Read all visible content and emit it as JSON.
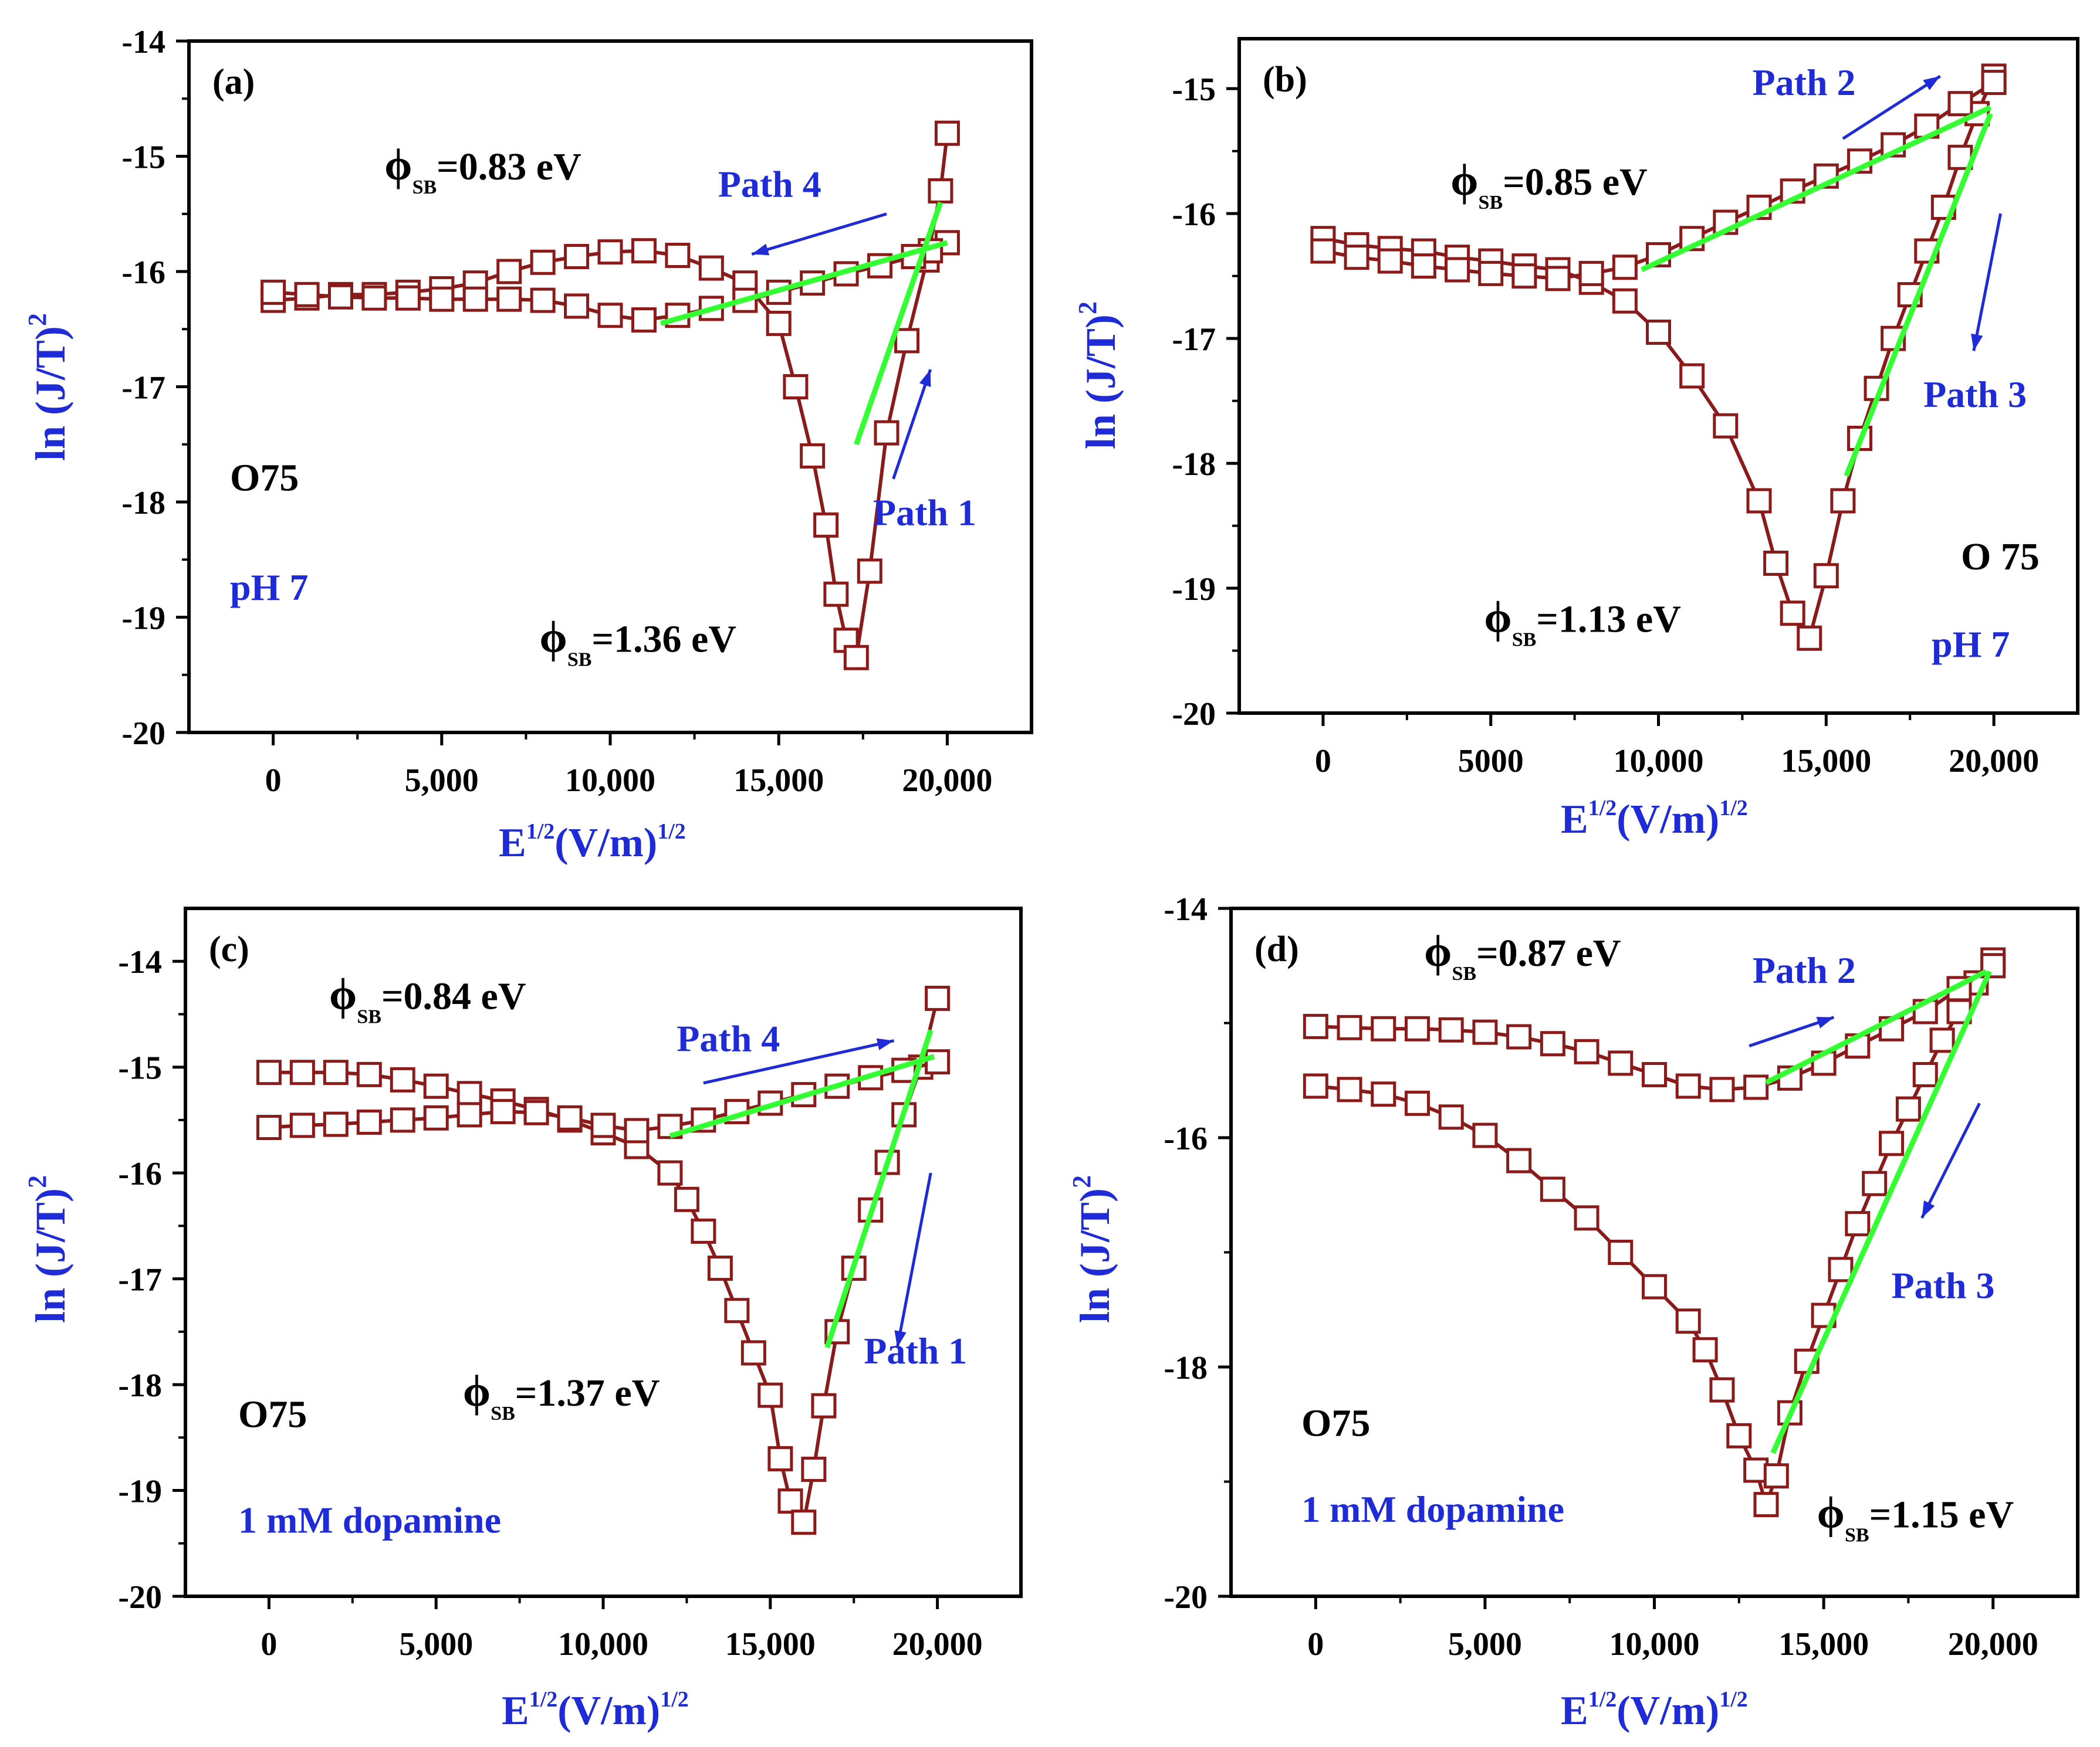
{
  "figure": {
    "x_axis_label": "E",
    "x_axis_sup1": "1/2",
    "x_axis_label_mid": "(V/m)",
    "x_axis_sup2": "1/2",
    "y_axis_label": "ln (J/T)",
    "y_axis_sup": "2",
    "phi_symbol": "ϕ",
    "phi_subscript": "SB"
  },
  "colors": {
    "data_curve": "#8b1a1a",
    "fit_line": "#33ff33",
    "annotation_blue": "#1f2bd6",
    "axis": "#000000"
  },
  "chart_data": [
    {
      "panel_label": "(a)",
      "type": "line",
      "xlim": [
        -2500,
        22500
      ],
      "ylim": [
        -20,
        -14
      ],
      "x_ticks": [
        0,
        5000,
        10000,
        15000,
        20000
      ],
      "x_tick_labels": [
        "0",
        "5,000",
        "10,000",
        "15,000",
        "20,000"
      ],
      "y_ticks": [
        -20,
        -19,
        -18,
        -17,
        -16,
        -15,
        -14
      ],
      "y_tick_labels": [
        "-20",
        "-19",
        "-18",
        "-17",
        "-16",
        "-15",
        "-14"
      ],
      "sample": "O75",
      "condition": "pH  7",
      "barriers": [
        {
          "value": "=0.83 eV",
          "x": 3300,
          "y": -15.2
        },
        {
          "value": "=1.36 eV",
          "x": 7900,
          "y": -19.3
        }
      ],
      "paths": [
        {
          "label": "Path 4",
          "x": 13200,
          "y": -15.35,
          "arrow": [
            [
              18200,
              -15.5
            ],
            [
              14200,
              -15.85
            ]
          ]
        },
        {
          "label": "Path 1",
          "x": 17800,
          "y": -18.2,
          "arrow": [
            [
              18400,
              -17.8
            ],
            [
              19500,
              -16.85
            ]
          ]
        }
      ],
      "fit_lines": [
        [
          [
            11500,
            -16.45
          ],
          [
            20000,
            -15.75
          ]
        ],
        [
          [
            17300,
            -17.5
          ],
          [
            19800,
            -15.4
          ]
        ]
      ],
      "series": [
        {
          "name": "forward",
          "x": [
            0,
            1000,
            2000,
            3000,
            4000,
            5000,
            6000,
            7000,
            8000,
            9000,
            10000,
            11000,
            12000,
            13000,
            14000,
            15000,
            15500,
            16000,
            16400,
            16700,
            17000,
            17300,
            17700,
            18200,
            18800,
            19400,
            19800,
            20000
          ],
          "y": [
            -16.25,
            -16.23,
            -16.2,
            -16.2,
            -16.18,
            -16.15,
            -16.1,
            -16.0,
            -15.92,
            -15.87,
            -15.83,
            -15.82,
            -15.86,
            -15.97,
            -16.1,
            -16.45,
            -17.0,
            -17.6,
            -18.2,
            -18.8,
            -19.2,
            -19.35,
            -18.6,
            -17.4,
            -16.6,
            -15.9,
            -15.3,
            -14.8
          ]
        },
        {
          "name": "reverse",
          "x": [
            20000,
            19500,
            19000,
            18000,
            17000,
            16000,
            15000,
            14000,
            13000,
            12000,
            11000,
            10000,
            9000,
            8000,
            7000,
            6000,
            5000,
            4000,
            3000,
            2000,
            1000,
            0
          ],
          "y": [
            -15.75,
            -15.82,
            -15.87,
            -15.95,
            -16.02,
            -16.1,
            -16.18,
            -16.25,
            -16.32,
            -16.38,
            -16.42,
            -16.38,
            -16.3,
            -16.25,
            -16.24,
            -16.24,
            -16.24,
            -16.23,
            -16.23,
            -16.22,
            -16.2,
            -16.18
          ]
        }
      ]
    },
    {
      "panel_label": "(b)",
      "type": "line",
      "xlim": [
        -2500,
        22500
      ],
      "ylim": [
        -20,
        -14.6
      ],
      "x_ticks": [
        0,
        5000,
        10000,
        15000,
        20000
      ],
      "x_tick_labels": [
        "0",
        "5000",
        "10,000",
        "15,000",
        "20,000"
      ],
      "y_ticks": [
        -20,
        -19,
        -18,
        -17,
        -16,
        -15
      ],
      "y_tick_labels": [
        "-20",
        "-19",
        "-18",
        "-17",
        "-16",
        "-15"
      ],
      "sample": "O 75",
      "condition": "pH 7",
      "barriers": [
        {
          "value": "=0.85 eV",
          "x": 3800,
          "y": -15.85
        },
        {
          "value": "=1.13 eV",
          "x": 4800,
          "y": -19.35
        }
      ],
      "paths": [
        {
          "label": "Path 2",
          "x": 12800,
          "y": -15.05,
          "arrow": [
            [
              15500,
              -15.4
            ],
            [
              18400,
              -14.9
            ]
          ]
        },
        {
          "label": "Path 3",
          "x": 17900,
          "y": -17.55,
          "arrow": [
            [
              20200,
              -16.0
            ],
            [
              19400,
              -17.1
            ]
          ]
        }
      ],
      "fit_lines": [
        [
          [
            9500,
            -16.45
          ],
          [
            19900,
            -15.15
          ]
        ],
        [
          [
            15600,
            -18.1
          ],
          [
            19900,
            -15.2
          ]
        ]
      ],
      "series": [
        {
          "name": "forward",
          "x": [
            0,
            1000,
            2000,
            3000,
            4000,
            5000,
            6000,
            7000,
            8000,
            9000,
            10000,
            11000,
            12000,
            13000,
            13500,
            14000,
            14500,
            15000,
            15500,
            16000,
            16500,
            17000,
            17500,
            18000,
            18500,
            19000,
            19500,
            20000
          ],
          "y": [
            -16.2,
            -16.25,
            -16.28,
            -16.3,
            -16.35,
            -16.38,
            -16.42,
            -16.45,
            -16.55,
            -16.7,
            -16.95,
            -17.3,
            -17.7,
            -18.3,
            -18.8,
            -19.2,
            -19.4,
            -18.9,
            -18.3,
            -17.8,
            -17.4,
            -17.0,
            -16.65,
            -16.3,
            -15.95,
            -15.55,
            -15.2,
            -14.9
          ]
        },
        {
          "name": "reverse",
          "x": [
            20000,
            19000,
            18000,
            17000,
            16000,
            15000,
            14000,
            13000,
            12000,
            11000,
            10000,
            9000,
            8000,
            7000,
            6000,
            5000,
            4000,
            3000,
            2000,
            1000,
            0
          ],
          "y": [
            -14.95,
            -15.12,
            -15.3,
            -15.45,
            -15.58,
            -15.7,
            -15.82,
            -15.95,
            -16.07,
            -16.2,
            -16.33,
            -16.43,
            -16.48,
            -16.52,
            -16.5,
            -16.48,
            -16.45,
            -16.42,
            -16.38,
            -16.35,
            -16.3
          ]
        }
      ]
    },
    {
      "panel_label": "(c)",
      "type": "line",
      "xlim": [
        -2500,
        22500
      ],
      "ylim": [
        -20,
        -13.5
      ],
      "x_ticks": [
        0,
        5000,
        10000,
        15000,
        20000
      ],
      "x_tick_labels": [
        "0",
        "5,000",
        "10,000",
        "15,000",
        "20,000"
      ],
      "y_ticks": [
        -20,
        -19,
        -18,
        -17,
        -16,
        -15,
        -14
      ],
      "y_tick_labels": [
        "-20",
        "-19",
        "-18",
        "-17",
        "-16",
        "-15",
        "-14"
      ],
      "sample": "O75",
      "condition": "1 mM dopamine",
      "barriers": [
        {
          "value": "=0.84 eV",
          "x": 1800,
          "y": -14.45
        },
        {
          "value": "=1.37 eV",
          "x": 5800,
          "y": -18.2
        }
      ],
      "paths": [
        {
          "label": "Path 4",
          "x": 12200,
          "y": -14.85,
          "arrow": [
            [
              13000,
              -15.15
            ],
            [
              18700,
              -14.75
            ]
          ]
        },
        {
          "label": "Path 1",
          "x": 17800,
          "y": -17.8,
          "arrow": [
            [
              19800,
              -16.0
            ],
            [
              18800,
              -17.65
            ]
          ]
        }
      ],
      "fit_lines": [
        [
          [
            12000,
            -15.65
          ],
          [
            19900,
            -14.9
          ]
        ],
        [
          [
            16700,
            -17.65
          ],
          [
            19800,
            -14.65
          ]
        ]
      ],
      "series": [
        {
          "name": "forward",
          "x": [
            0,
            1000,
            2000,
            3000,
            4000,
            5000,
            6000,
            7000,
            8000,
            9000,
            10000,
            11000,
            12000,
            12500,
            13000,
            13500,
            14000,
            14500,
            15000,
            15300,
            15600,
            16000,
            16300,
            16600,
            17000,
            17500,
            18000,
            18500,
            19000,
            19500,
            20000
          ],
          "y": [
            -15.05,
            -15.05,
            -15.05,
            -15.07,
            -15.12,
            -15.18,
            -15.25,
            -15.32,
            -15.4,
            -15.5,
            -15.62,
            -15.75,
            -16.0,
            -16.25,
            -16.55,
            -16.9,
            -17.3,
            -17.7,
            -18.1,
            -18.7,
            -19.1,
            -19.3,
            -18.8,
            -18.2,
            -17.5,
            -16.9,
            -16.35,
            -15.9,
            -15.45,
            -15.0,
            -14.35
          ]
        },
        {
          "name": "reverse",
          "x": [
            20000,
            19000,
            18000,
            17000,
            16000,
            15000,
            14000,
            13000,
            12000,
            11000,
            10000,
            9000,
            8000,
            7000,
            6000,
            5000,
            4000,
            3000,
            2000,
            1000,
            0
          ],
          "y": [
            -14.95,
            -15.03,
            -15.1,
            -15.18,
            -15.26,
            -15.34,
            -15.42,
            -15.5,
            -15.56,
            -15.6,
            -15.55,
            -15.48,
            -15.43,
            -15.42,
            -15.45,
            -15.48,
            -15.5,
            -15.52,
            -15.54,
            -15.55,
            -15.57
          ]
        }
      ]
    },
    {
      "panel_label": "(d)",
      "type": "line",
      "xlim": [
        -2500,
        22500
      ],
      "ylim": [
        -20,
        -14
      ],
      "x_ticks": [
        0,
        5000,
        10000,
        15000,
        20000
      ],
      "x_tick_labels": [
        "0",
        "5,000",
        "10,000",
        "15,000",
        "20,000"
      ],
      "y_ticks": [
        -20,
        -18,
        -16,
        -14
      ],
      "y_tick_labels": [
        "-20",
        "-18",
        "-16",
        "-14"
      ],
      "sample": "O75",
      "condition": "1 mM dopamine",
      "barriers": [
        {
          "value": "=0.87 eV",
          "x": 3200,
          "y": -14.5
        },
        {
          "value": "=1.15 eV",
          "x": 14800,
          "y": -19.4
        }
      ],
      "paths": [
        {
          "label": "Path 2",
          "x": 12900,
          "y": -14.65,
          "arrow": [
            [
              12800,
              -15.2
            ],
            [
              15300,
              -14.95
            ]
          ]
        },
        {
          "label": "Path 3",
          "x": 17000,
          "y": -17.4,
          "arrow": [
            [
              19600,
              -15.7
            ],
            [
              17900,
              -16.7
            ]
          ]
        }
      ],
      "fit_lines": [
        [
          [
            13300,
            -15.52
          ],
          [
            19800,
            -14.55
          ]
        ],
        [
          [
            13500,
            -18.75
          ],
          [
            19900,
            -14.55
          ]
        ]
      ],
      "series": [
        {
          "name": "forward",
          "x": [
            0,
            1000,
            2000,
            3000,
            4000,
            5000,
            6000,
            7000,
            8000,
            9000,
            10000,
            11000,
            11500,
            12000,
            12500,
            13000,
            13300,
            13600,
            14000,
            14500,
            15000,
            15500,
            16000,
            16500,
            17000,
            17500,
            18000,
            18500,
            19000,
            19500,
            20000
          ],
          "y": [
            -15.55,
            -15.58,
            -15.62,
            -15.7,
            -15.82,
            -15.98,
            -16.2,
            -16.45,
            -16.7,
            -17.0,
            -17.3,
            -17.6,
            -17.85,
            -18.2,
            -18.6,
            -18.9,
            -19.2,
            -18.95,
            -18.4,
            -17.95,
            -17.55,
            -17.15,
            -16.75,
            -16.4,
            -16.05,
            -15.75,
            -15.45,
            -15.15,
            -14.9,
            -14.65,
            -14.45
          ]
        },
        {
          "name": "reverse",
          "x": [
            20000,
            19000,
            18000,
            17000,
            16000,
            15000,
            14000,
            13000,
            12000,
            11000,
            10000,
            9000,
            8000,
            7000,
            6000,
            5000,
            4000,
            3000,
            2000,
            1000,
            0
          ],
          "y": [
            -14.5,
            -14.7,
            -14.9,
            -15.05,
            -15.2,
            -15.35,
            -15.48,
            -15.56,
            -15.58,
            -15.55,
            -15.45,
            -15.35,
            -15.25,
            -15.18,
            -15.12,
            -15.08,
            -15.06,
            -15.05,
            -15.05,
            -15.04,
            -15.03
          ]
        }
      ]
    }
  ]
}
